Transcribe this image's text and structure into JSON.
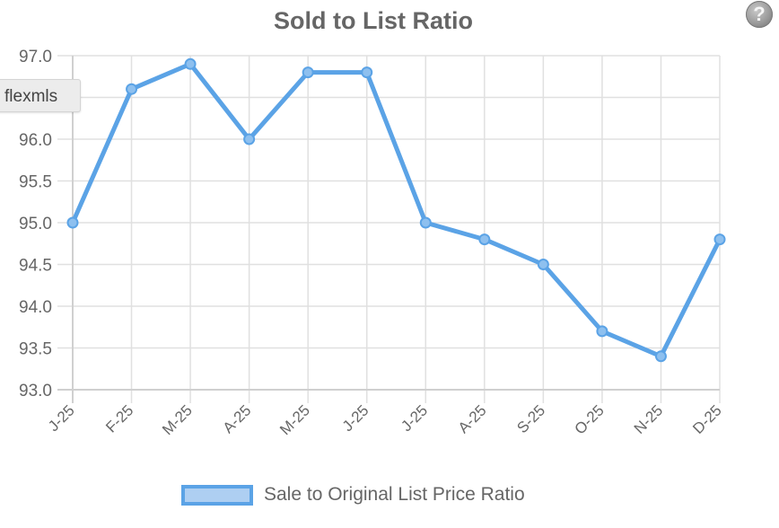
{
  "header": {
    "title": "Sold to List Ratio"
  },
  "help_button": {
    "icon": "question-icon",
    "glyph": "?"
  },
  "badge": {
    "label": "flexmls"
  },
  "legend": {
    "label": "Sale to Original List Price Ratio",
    "line_color": "#5ba3e6",
    "fill_color": "#aecff2"
  },
  "chart_data": {
    "type": "line",
    "title": "Sold to List Ratio",
    "xlabel": "",
    "ylabel": "",
    "categories": [
      "J-25",
      "F-25",
      "M-25",
      "A-25",
      "M-25",
      "J-25",
      "J-25",
      "A-25",
      "S-25",
      "O-25",
      "N-25",
      "D-25"
    ],
    "series": [
      {
        "name": "Sale to Original List Price Ratio",
        "values": [
          95.0,
          96.6,
          96.9,
          96.0,
          96.8,
          96.8,
          95.0,
          94.8,
          94.5,
          93.7,
          93.4,
          94.8
        ],
        "color": "#5ba3e6"
      }
    ],
    "ylim": [
      93.0,
      97.0
    ],
    "yticks": [
      "97.0",
      "96.5",
      "96.0",
      "95.5",
      "95.0",
      "94.5",
      "94.0",
      "93.5",
      "93.0"
    ],
    "grid": true,
    "legend_position": "bottom"
  }
}
